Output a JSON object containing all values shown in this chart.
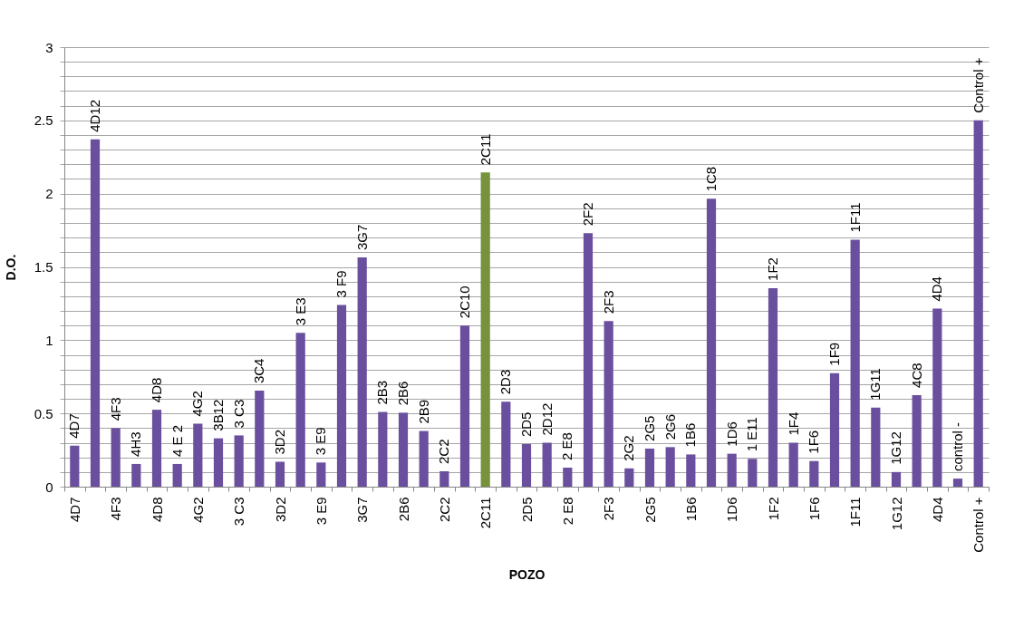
{
  "chart_data": {
    "type": "bar",
    "xlabel": "POZO",
    "ylabel": "D.O.",
    "categories": [
      "4D7",
      "4D12",
      "4F3",
      "4H3",
      "4D8",
      "4 E 2",
      "4G2",
      "3B12",
      "3 C3",
      "3C4",
      "3D2",
      "3 E3",
      "3 E9",
      "3 F9",
      "3G7",
      "2B3",
      "2B6",
      "2B9",
      "2C2",
      "2C10",
      "2C11",
      "2D3",
      "2D5",
      "2D12",
      "2 E8",
      "2F2",
      "2F3",
      "2G2",
      "2G5",
      "2G6",
      "1B6",
      "1C8",
      "1D6",
      "1 E11",
      "1F2",
      "1F4",
      "1F6",
      "1F9",
      "1F11",
      "1G11",
      "1G12",
      "4C8",
      "4D4",
      "control -",
      "Control +"
    ],
    "values": [
      0.28,
      2.37,
      0.4,
      0.155,
      0.525,
      0.155,
      0.43,
      0.33,
      0.35,
      0.655,
      0.17,
      1.05,
      0.165,
      1.24,
      1.565,
      0.51,
      0.505,
      0.38,
      0.105,
      1.1,
      2.145,
      0.58,
      0.29,
      0.3,
      0.13,
      1.73,
      1.13,
      0.125,
      0.26,
      0.27,
      0.22,
      1.965,
      0.225,
      0.19,
      1.355,
      0.3,
      0.175,
      0.775,
      1.685,
      0.54,
      0.1,
      0.625,
      1.215,
      0.055,
      2.5
    ],
    "colors": [
      "#6a4f9e",
      "#6a4f9e",
      "#6a4f9e",
      "#6a4f9e",
      "#6a4f9e",
      "#6a4f9e",
      "#6a4f9e",
      "#6a4f9e",
      "#6a4f9e",
      "#6a4f9e",
      "#6a4f9e",
      "#6a4f9e",
      "#6a4f9e",
      "#6a4f9e",
      "#6a4f9e",
      "#6a4f9e",
      "#6a4f9e",
      "#6a4f9e",
      "#6a4f9e",
      "#6a4f9e",
      "#76923c",
      "#6a4f9e",
      "#6a4f9e",
      "#6a4f9e",
      "#6a4f9e",
      "#6a4f9e",
      "#6a4f9e",
      "#6a4f9e",
      "#6a4f9e",
      "#6a4f9e",
      "#6a4f9e",
      "#6a4f9e",
      "#6a4f9e",
      "#6a4f9e",
      "#6a4f9e",
      "#6a4f9e",
      "#6a4f9e",
      "#6a4f9e",
      "#6a4f9e",
      "#6a4f9e",
      "#6a4f9e",
      "#6a4f9e",
      "#6a4f9e",
      "#6a4f9e",
      "#6a4f9e"
    ],
    "ylim": [
      0,
      3
    ],
    "yticks": [
      0,
      {
        "value": 0.1,
        "label": null
      },
      {
        "value": 0.2,
        "label": null
      },
      {
        "value": 0.3,
        "label": null
      },
      {
        "value": 0.4,
        "label": null
      },
      0.5,
      {
        "value": 0.6,
        "label": null
      },
      {
        "value": 0.7,
        "label": null
      },
      {
        "value": 0.8,
        "label": null
      },
      {
        "value": 0.9,
        "label": null
      },
      1,
      {
        "value": 1.1,
        "label": null
      },
      {
        "value": 1.2,
        "label": null
      },
      {
        "value": 1.3,
        "label": null
      },
      {
        "value": 1.4,
        "label": null
      },
      1.5,
      {
        "value": 1.6,
        "label": null
      },
      {
        "value": 1.7,
        "label": null
      },
      {
        "value": 1.8,
        "label": null
      },
      {
        "value": 1.9,
        "label": null
      },
      2,
      {
        "value": 2.1,
        "label": null
      },
      {
        "value": 2.2,
        "label": null
      },
      {
        "value": 2.3,
        "label": null
      },
      {
        "value": 2.4,
        "label": null
      },
      2.5,
      {
        "value": 2.6,
        "label": null
      },
      {
        "value": 2.7,
        "label": null
      },
      {
        "value": 2.8,
        "label": null
      },
      {
        "value": 2.9,
        "label": null
      },
      3
    ],
    "grid": "y"
  }
}
